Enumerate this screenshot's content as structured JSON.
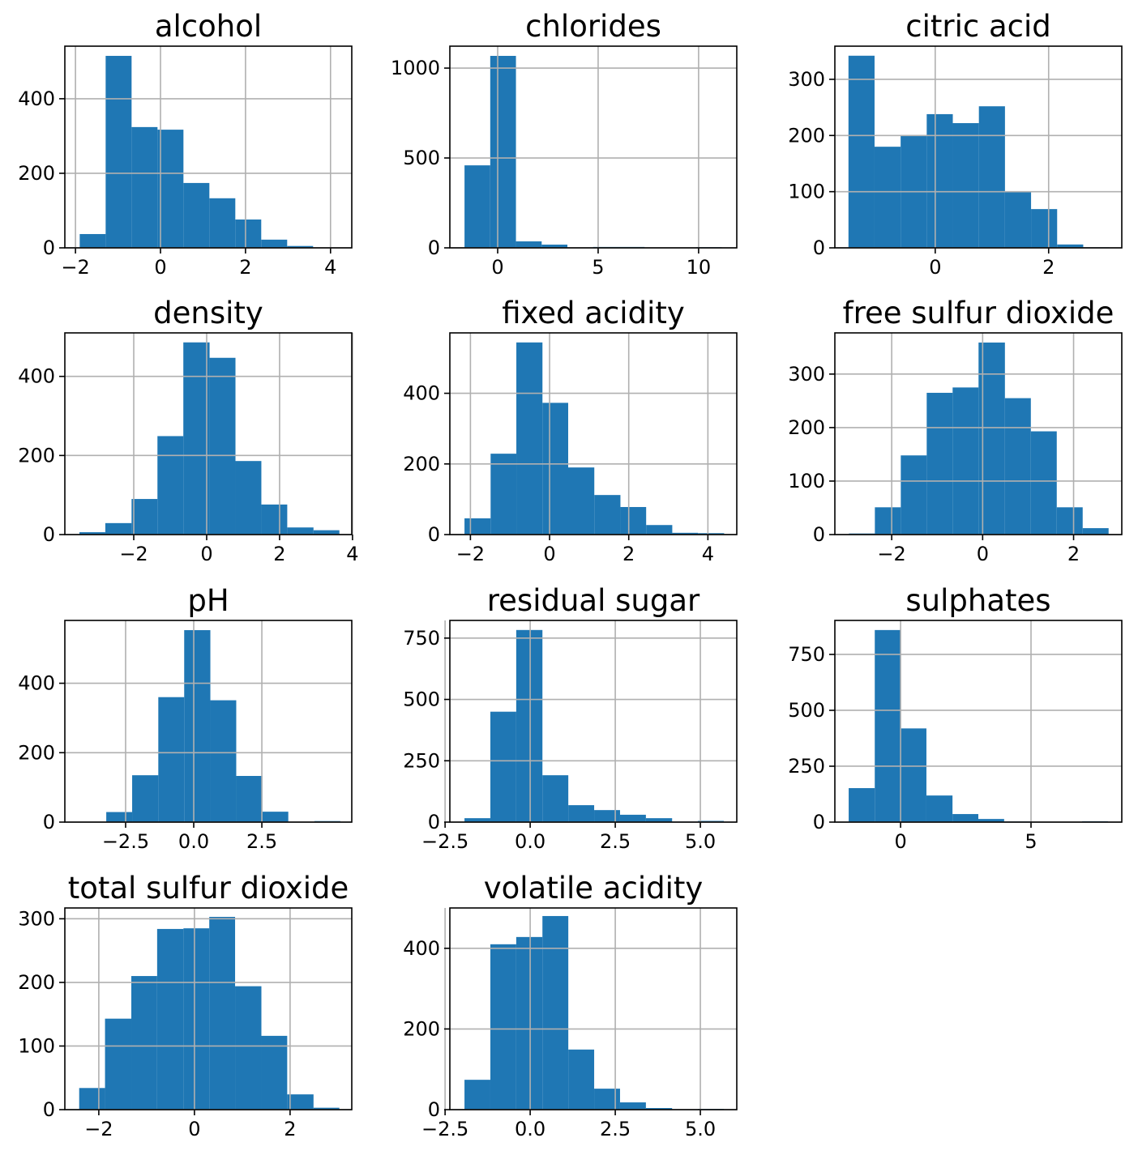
{
  "chart_data": [
    {
      "type": "histogram",
      "title": "alcohol",
      "color": "#1f77b4",
      "grid": true,
      "bins": [
        -1.9,
        -1.29,
        -0.68,
        -0.07,
        0.54,
        1.15,
        1.76,
        2.37,
        2.98,
        3.59,
        4.2
      ],
      "values": [
        37,
        515,
        324,
        317,
        174,
        133,
        76,
        22,
        5,
        1
      ],
      "xlim": [
        -2.25,
        4.5
      ],
      "xticks": [
        {
          "value": -2,
          "label": "−2"
        },
        0,
        2,
        4
      ],
      "ylim": [
        0,
        541
      ],
      "yticks": [
        0,
        200,
        400
      ]
    },
    {
      "type": "histogram",
      "title": "chlorides",
      "color": "#1f77b4",
      "grid": true,
      "bins": [
        -1.65,
        -0.37,
        0.91,
        2.19,
        3.47,
        4.75,
        6.03,
        7.31,
        8.59,
        9.87,
        11.15
      ],
      "values": [
        459,
        1068,
        36,
        18,
        2,
        5,
        5,
        0,
        1,
        4
      ],
      "xlim": [
        -2.38,
        11.9
      ],
      "xticks": [
        0,
        5,
        10
      ],
      "ylim": [
        0,
        1122
      ],
      "yticks": [
        0,
        500,
        1000
      ]
    },
    {
      "type": "histogram",
      "title": "citric acid",
      "color": "#1f77b4",
      "grid": true,
      "bins": [
        -1.53,
        -1.07,
        -0.61,
        -0.15,
        0.31,
        0.77,
        1.23,
        1.69,
        2.15,
        2.61,
        3.07
      ],
      "values": [
        342,
        180,
        199,
        238,
        222,
        252,
        100,
        69,
        6,
        1
      ],
      "xlim": [
        -1.77,
        3.29
      ],
      "xticks": [
        0,
        2
      ],
      "ylim": [
        0,
        359
      ],
      "yticks": [
        0,
        100,
        200,
        300
      ]
    },
    {
      "type": "histogram",
      "title": "density",
      "color": "#1f77b4",
      "grid": true,
      "bins": [
        -3.49,
        -2.78,
        -2.06,
        -1.35,
        -0.64,
        0.08,
        0.79,
        1.5,
        2.21,
        2.93,
        3.64
      ],
      "values": [
        6,
        29,
        90,
        249,
        486,
        447,
        186,
        76,
        18,
        11
      ],
      "xlim": [
        -3.89,
        3.98
      ],
      "xticks": [
        {
          "value": -2,
          "label": "−2"
        },
        0,
        2,
        4
      ],
      "ylim": [
        0,
        510
      ],
      "yticks": [
        0,
        200,
        400
      ]
    },
    {
      "type": "histogram",
      "title": "fixed acidity",
      "color": "#1f77b4",
      "grid": true,
      "bins": [
        -2.15,
        -1.49,
        -0.84,
        -0.18,
        0.47,
        1.13,
        1.79,
        2.44,
        3.1,
        3.75,
        4.41
      ],
      "values": [
        46,
        229,
        544,
        373,
        190,
        112,
        78,
        27,
        5,
        4
      ],
      "xlim": [
        -2.52,
        4.73
      ],
      "xticks": [
        {
          "value": -2,
          "label": "−2"
        },
        0,
        2,
        4
      ],
      "ylim": [
        0,
        571
      ],
      "yticks": [
        0,
        200,
        400
      ]
    },
    {
      "type": "histogram",
      "title": "free sulfur dioxide",
      "color": "#1f77b4",
      "grid": true,
      "bins": [
        -2.94,
        -2.37,
        -1.8,
        -1.23,
        -0.66,
        -0.09,
        0.49,
        1.06,
        1.63,
        2.2,
        2.77
      ],
      "values": [
        2,
        51,
        148,
        265,
        275,
        359,
        255,
        193,
        51,
        12
      ],
      "xlim": [
        -3.25,
        3.06
      ],
      "xticks": [
        {
          "value": -2,
          "label": "−2"
        },
        0,
        2
      ],
      "ylim": [
        0,
        377
      ],
      "yticks": [
        0,
        100,
        200,
        300
      ]
    },
    {
      "type": "histogram",
      "title": "pH",
      "color": "#1f77b4",
      "grid": true,
      "bins": [
        -4.17,
        -3.21,
        -2.26,
        -1.3,
        -0.35,
        0.61,
        1.56,
        2.52,
        3.47,
        4.43,
        5.38
      ],
      "values": [
        1,
        29,
        135,
        360,
        553,
        351,
        133,
        30,
        0,
        3
      ],
      "xlim": [
        -4.73,
        5.8
      ],
      "xticks": [
        {
          "value": -2.5,
          "label": "−2.5"
        },
        {
          "value": 0,
          "label": "0.0"
        },
        2.5
      ],
      "ylim": [
        0,
        581
      ],
      "yticks": [
        0,
        200,
        400
      ]
    },
    {
      "type": "histogram",
      "title": "residual sugar",
      "color": "#1f77b4",
      "grid": true,
      "bins": [
        -1.93,
        -1.17,
        -0.41,
        0.36,
        1.12,
        1.88,
        2.64,
        3.4,
        4.17,
        4.93,
        5.69
      ],
      "values": [
        16,
        450,
        783,
        191,
        69,
        49,
        30,
        16,
        2,
        5
      ],
      "xlim": [
        -2.36,
        6.07
      ],
      "xticks": [
        {
          "value": -2.5,
          "label": "−2.5"
        },
        {
          "value": 0,
          "label": "0.0"
        },
        2.5,
        {
          "value": 5,
          "label": "5.0"
        }
      ],
      "ylim": [
        0,
        822
      ],
      "yticks": [
        0,
        250,
        500,
        750
      ]
    },
    {
      "type": "histogram",
      "title": "sulphates",
      "color": "#1f77b4",
      "grid": true,
      "bins": [
        -1.99,
        -0.99,
        0.0,
        0.99,
        1.99,
        2.98,
        3.97,
        4.97,
        5.96,
        6.96,
        7.95
      ],
      "values": [
        152,
        859,
        419,
        119,
        36,
        14,
        3,
        1,
        0,
        4
      ],
      "xlim": [
        -2.52,
        8.48
      ],
      "xticks": [
        0,
        5
      ],
      "ylim": [
        0,
        902
      ],
      "yticks": [
        0,
        250,
        500,
        750
      ]
    },
    {
      "type": "histogram",
      "title": "total sulfur dioxide",
      "color": "#1f77b4",
      "grid": true,
      "bins": [
        -2.41,
        -1.87,
        -1.32,
        -0.78,
        -0.23,
        0.31,
        0.85,
        1.4,
        1.94,
        2.49,
        3.03
      ],
      "values": [
        34,
        143,
        210,
        284,
        285,
        303,
        194,
        116,
        24,
        3
      ],
      "xlim": [
        -2.71,
        3.29
      ],
      "xticks": [
        {
          "value": -2,
          "label": "−2"
        },
        0,
        2
      ],
      "ylim": [
        0,
        317
      ],
      "yticks": [
        0,
        100,
        200,
        300
      ]
    },
    {
      "type": "histogram",
      "title": "volatile acidity",
      "color": "#1f77b4",
      "grid": true,
      "bins": [
        -1.93,
        -1.17,
        -0.41,
        0.36,
        1.12,
        1.88,
        2.64,
        3.4,
        4.17,
        4.93,
        5.69
      ],
      "values": [
        74,
        410,
        428,
        480,
        149,
        52,
        18,
        4,
        0,
        2
      ],
      "xlim": [
        -2.36,
        6.07
      ],
      "xticks": [
        {
          "value": -2.5,
          "label": "−2.5"
        },
        {
          "value": 0,
          "label": "0.0"
        },
        2.5,
        {
          "value": 5,
          "label": "5.0"
        }
      ],
      "ylim": [
        0,
        500
      ],
      "yticks": [
        0,
        200,
        400
      ]
    }
  ]
}
